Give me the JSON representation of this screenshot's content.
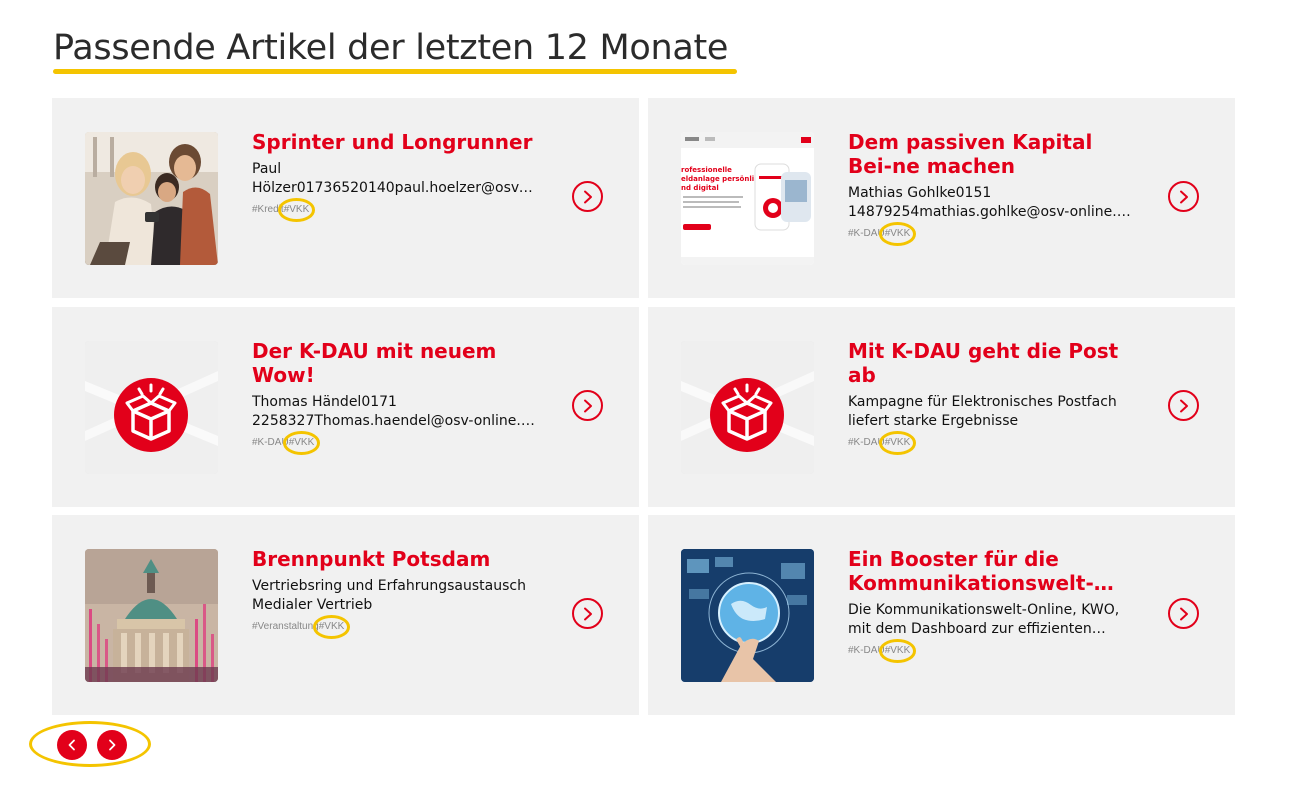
{
  "section": {
    "title": "Passende Artikel der letzten 12 Monate"
  },
  "articles": [
    {
      "title": "Sprinter und Longrunner",
      "desc": [
        "Paul",
        "Hölzer01736520140paul.hoelzer@osv-…"
      ],
      "tag_before": "#Kredit",
      "tag_highlight": "#VKK",
      "thumb": "shopping-women-photo"
    },
    {
      "title": "Dem passiven Kapital Bei-ne machen",
      "desc": [
        "Mathias Gohlke0151",
        "14879254mathias.gohlke@osv-online.d…"
      ],
      "tag_before": "#K-DAU",
      "tag_highlight": "#VKK",
      "thumb": "document-screenshot",
      "thumb_text": [
        "rofessionelle",
        "eldanlage persönlich",
        "nd digital"
      ]
    },
    {
      "title": "Der K-DAU mit neuem Wow!",
      "desc": [
        "Thomas Händel0171",
        "2258327Thomas.haendel@osv-online.d…"
      ],
      "tag_before": "#K-DAU",
      "tag_highlight": "#VKK",
      "thumb": "k-dau-box-icon"
    },
    {
      "title": "Mit K-DAU geht die Post ab",
      "desc": [
        "Kampagne für Elektronisches Postfach",
        "liefert starke Ergebnisse"
      ],
      "tag_before": "#K-DAU",
      "tag_highlight": "#VKK",
      "thumb": "k-dau-box-icon"
    },
    {
      "title": "Brennpunkt Potsdam",
      "desc": [
        "Vertriebsring und Erfahrungsaustausch",
        "Medialer Vertrieb"
      ],
      "tag_before": "#Veranstaltung",
      "tag_highlight": "#VKK",
      "thumb": "potsdam-dome-photo"
    },
    {
      "title": "Ein Booster für die Kommunikationswelt-…",
      "desc": [
        "Die Kommunikationswelt-Online, KWO,",
        "mit dem Dashboard zur effizienten…"
      ],
      "tag_before": "#K-DAU",
      "tag_highlight": "#VKK",
      "thumb": "tech-globe-photo"
    }
  ],
  "pager": {
    "prev_icon": "chevron-left-icon",
    "next_icon": "chevron-right-icon"
  },
  "colors": {
    "accent": "#e2001a",
    "highlight": "#f4c400",
    "card_bg": "#f1f1f1"
  }
}
